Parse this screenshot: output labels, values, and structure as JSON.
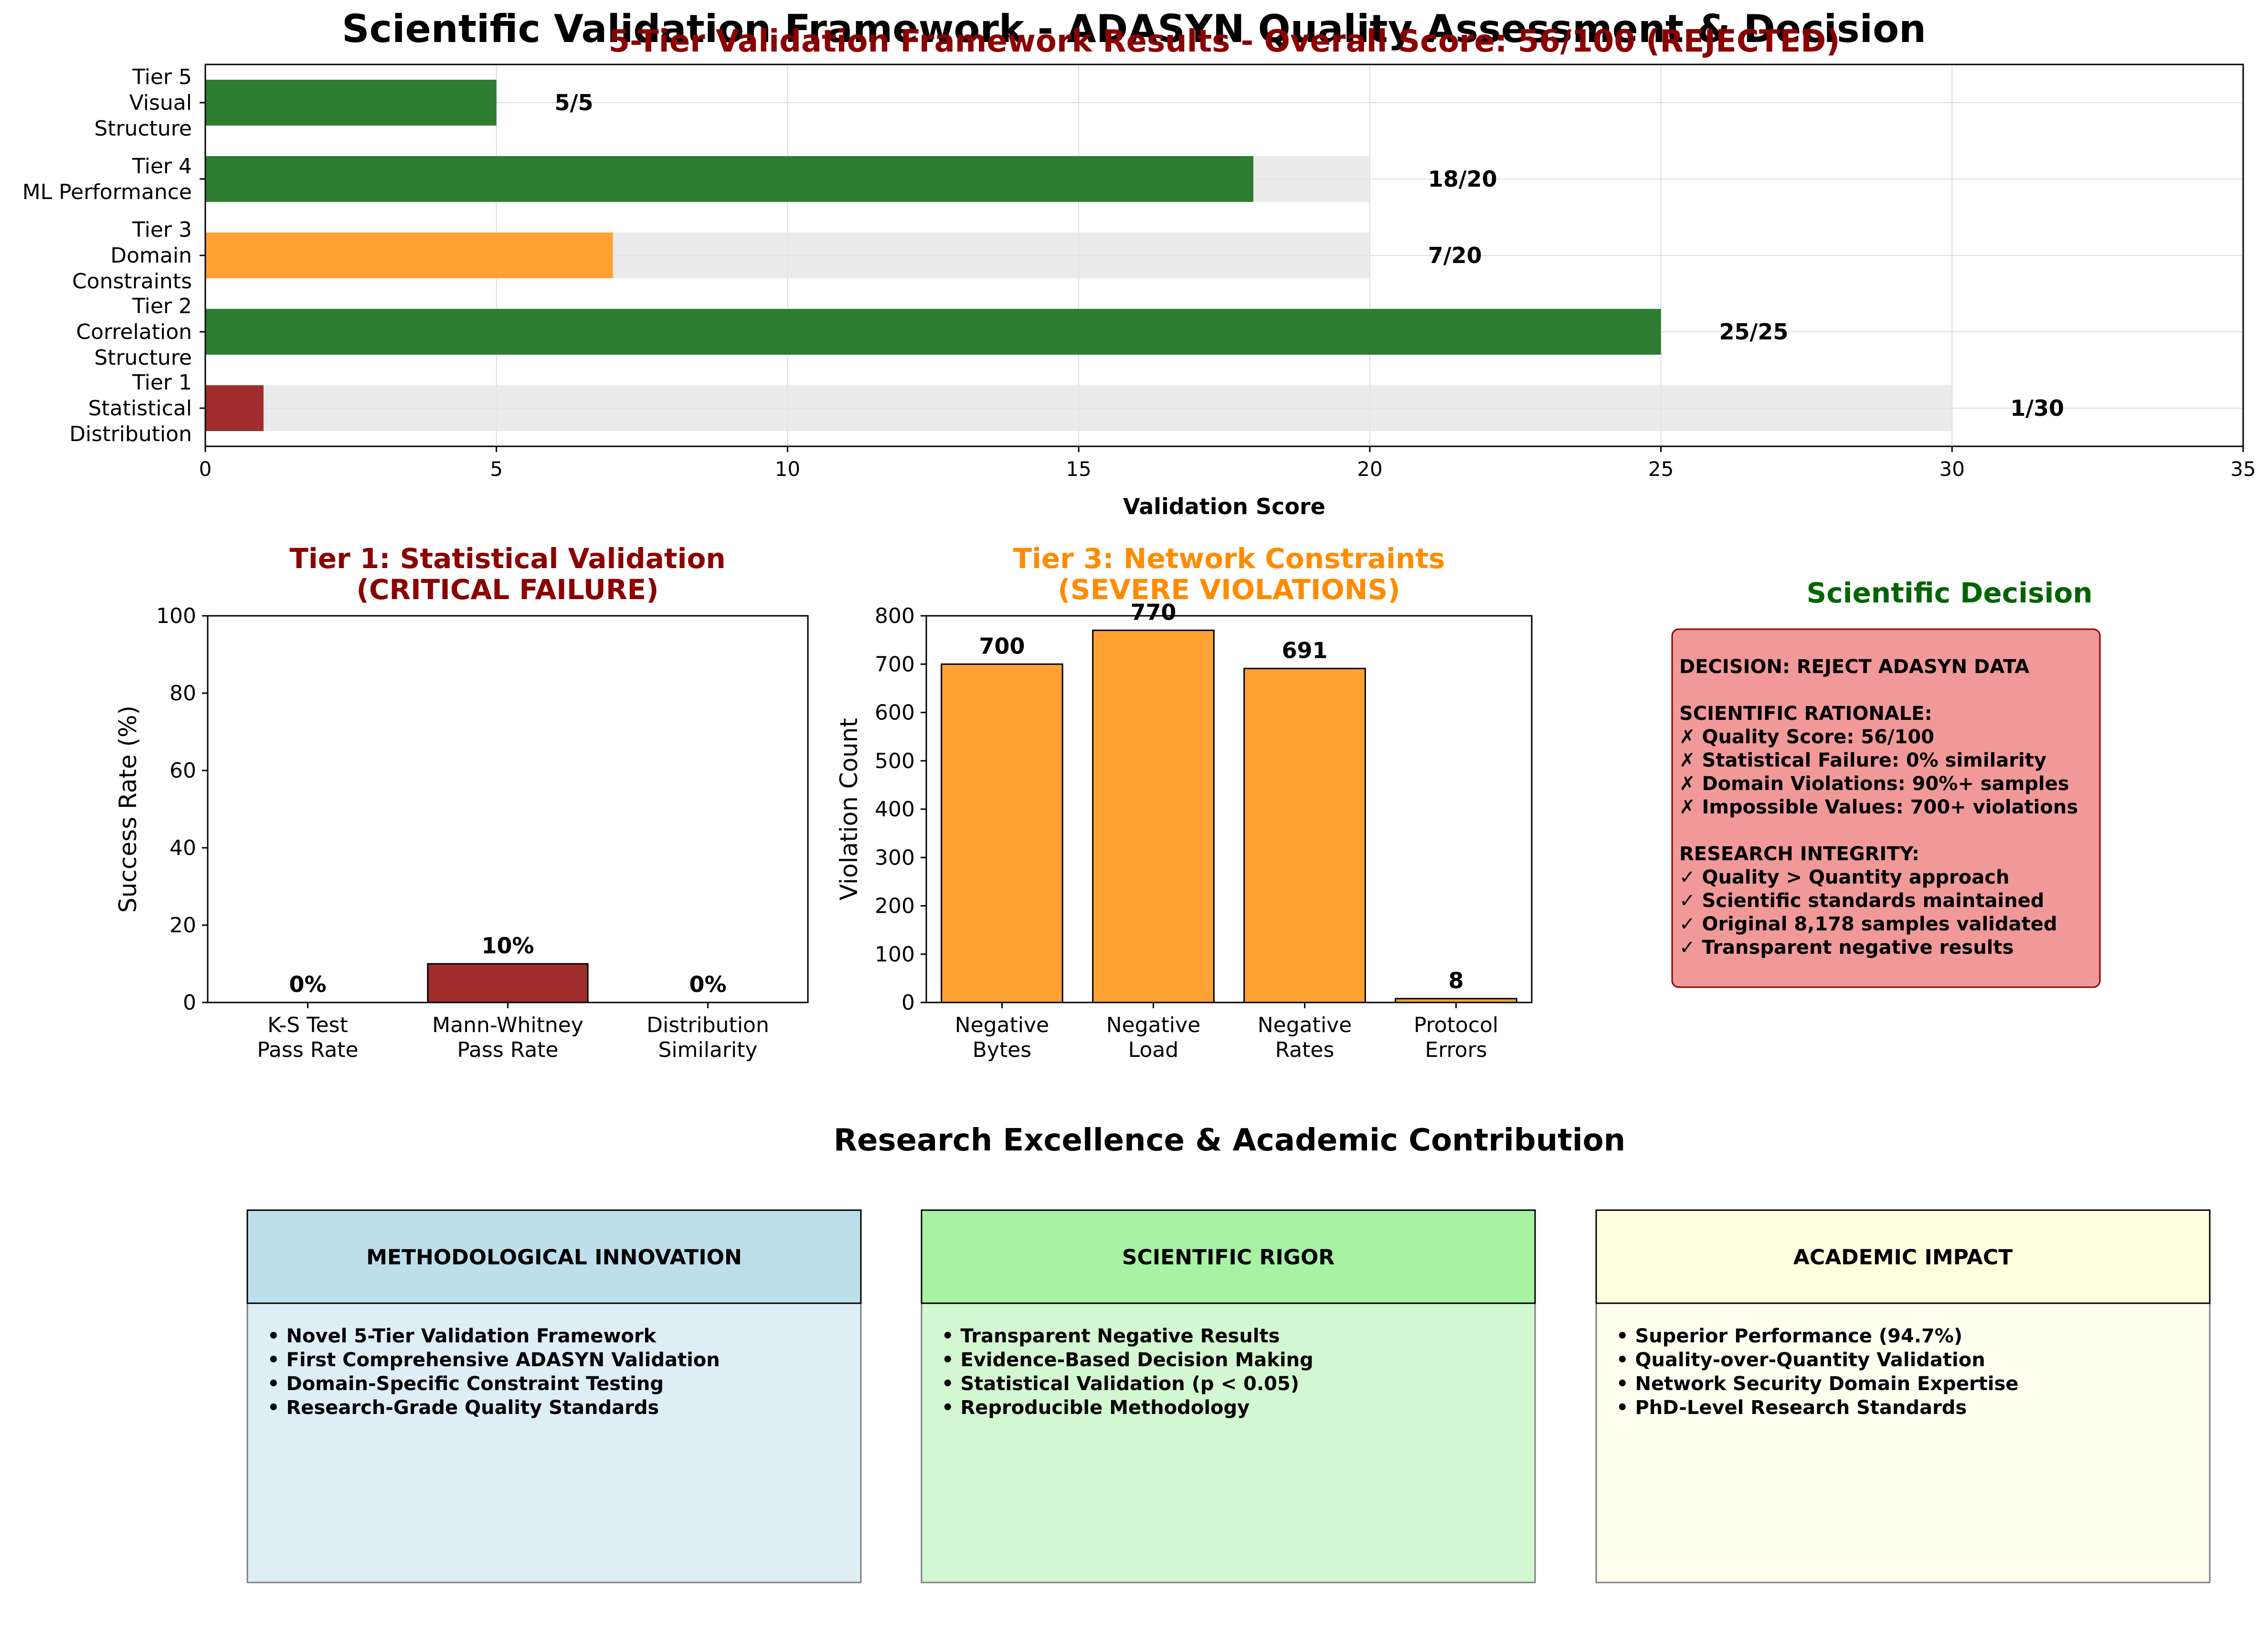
{
  "figure_title": "Scientific Validation Framework - ADASYN Quality Assessment & Decision",
  "colors": {
    "pass": "#2e7d32",
    "warn": "#ffa233",
    "fail": "#a02c2c",
    "capacity": "#e6e6e6",
    "dark_red": "#8b0000",
    "orange_title": "#ff8c00",
    "green_title": "#006400",
    "decision_fill": "#f19999",
    "decision_border": "#8b0000"
  },
  "chart_data": [
    {
      "id": "tier_scores",
      "type": "bar",
      "orientation": "horizontal",
      "title": "5-Tier Validation Framework Results - Overall Score: 56/100 (REJECTED)",
      "xlabel": "Validation Score",
      "ylabel": "",
      "xlim": [
        0,
        35
      ],
      "xticks": [
        "0",
        "5",
        "10",
        "15",
        "20",
        "25",
        "30",
        "35"
      ],
      "grid": true,
      "categories": [
        [
          "Tier 1",
          "Statistical",
          "Distribution"
        ],
        [
          "Tier 2",
          "Correlation",
          "Structure"
        ],
        [
          "Tier 3",
          "Domain",
          "Constraints"
        ],
        [
          "Tier 4",
          "ML Performance"
        ],
        [
          "Tier 5",
          "Visual",
          "Structure"
        ]
      ],
      "values": [
        1,
        25,
        7,
        18,
        5
      ],
      "max_values": [
        30,
        25,
        20,
        20,
        5
      ],
      "value_labels": [
        "1/30",
        "25/25",
        "7/20",
        "18/20",
        "5/5"
      ],
      "bar_status": [
        "fail",
        "pass",
        "warn",
        "pass",
        "pass"
      ]
    },
    {
      "id": "tier1_statistical",
      "type": "bar",
      "title": [
        "Tier 1: Statistical Validation",
        "(CRITICAL FAILURE)"
      ],
      "xlabel": "",
      "ylabel": "Success Rate (%)",
      "ylim": [
        0,
        100
      ],
      "yticks": [
        "0",
        "20",
        "40",
        "60",
        "80",
        "100"
      ],
      "grid": false,
      "categories": [
        [
          "K-S Test",
          "Pass Rate"
        ],
        [
          "Mann-Whitney",
          "Pass Rate"
        ],
        [
          "Distribution",
          "Similarity"
        ]
      ],
      "values": [
        0,
        10,
        0
      ],
      "value_labels": [
        "0%",
        "10%",
        "0%"
      ]
    },
    {
      "id": "tier3_network",
      "type": "bar",
      "title": [
        "Tier 3: Network Constraints",
        "(SEVERE VIOLATIONS)"
      ],
      "xlabel": "",
      "ylabel": "Violation Count",
      "ylim": [
        0,
        800
      ],
      "yticks": [
        "0",
        "100",
        "200",
        "300",
        "400",
        "500",
        "600",
        "700",
        "800"
      ],
      "grid": false,
      "categories": [
        [
          "Negative",
          "Bytes"
        ],
        [
          "Negative",
          "Load"
        ],
        [
          "Negative",
          "Rates"
        ],
        [
          "Protocol",
          "Errors"
        ]
      ],
      "values": [
        700,
        770,
        691,
        8
      ],
      "value_labels": [
        "700",
        "770",
        "691",
        "8"
      ]
    }
  ],
  "decision": {
    "title": "Scientific Decision",
    "lines": [
      "DECISION: REJECT ADASYN DATA",
      "",
      "SCIENTIFIC RATIONALE:",
      "✗ Quality Score: 56/100",
      "✗ Statistical Failure: 0% similarity",
      "✗ Domain Violations: 90%+ samples",
      "✗ Impossible Values: 700+ violations",
      "",
      "RESEARCH INTEGRITY:",
      "✓ Quality > Quantity approach",
      "✓ Scientific standards maintained",
      "✓ Original 8,178 samples validated",
      "✓ Transparent negative results"
    ]
  },
  "excellence": {
    "title": "Research Excellence & Academic Contribution",
    "cards": [
      {
        "heading": "METHODOLOGICAL INNOVATION",
        "header_color": "#bcdfeb",
        "body_color": "#ddeef5",
        "items": [
          "• Novel 5-Tier Validation Framework",
          "• First Comprehensive ADASYN Validation",
          "• Domain-Specific Constraint Testing",
          "• Research-Grade Quality Standards"
        ]
      },
      {
        "heading": "SCIENTIFIC RIGOR",
        "header_color": "#a8f2a4",
        "body_color": "#d3f7d0",
        "items": [
          "• Transparent Negative Results",
          "• Evidence-Based Decision Making",
          "• Statistical Validation (p < 0.05)",
          "• Reproducible Methodology"
        ]
      },
      {
        "heading": "ACADEMIC IMPACT",
        "header_color": "#ffffe0",
        "body_color": "#fffff0",
        "items": [
          "• Superior Performance (94.7%)",
          "• Quality-over-Quantity Validation",
          "• Network Security Domain Expertise",
          "• PhD-Level Research Standards"
        ]
      }
    ]
  }
}
